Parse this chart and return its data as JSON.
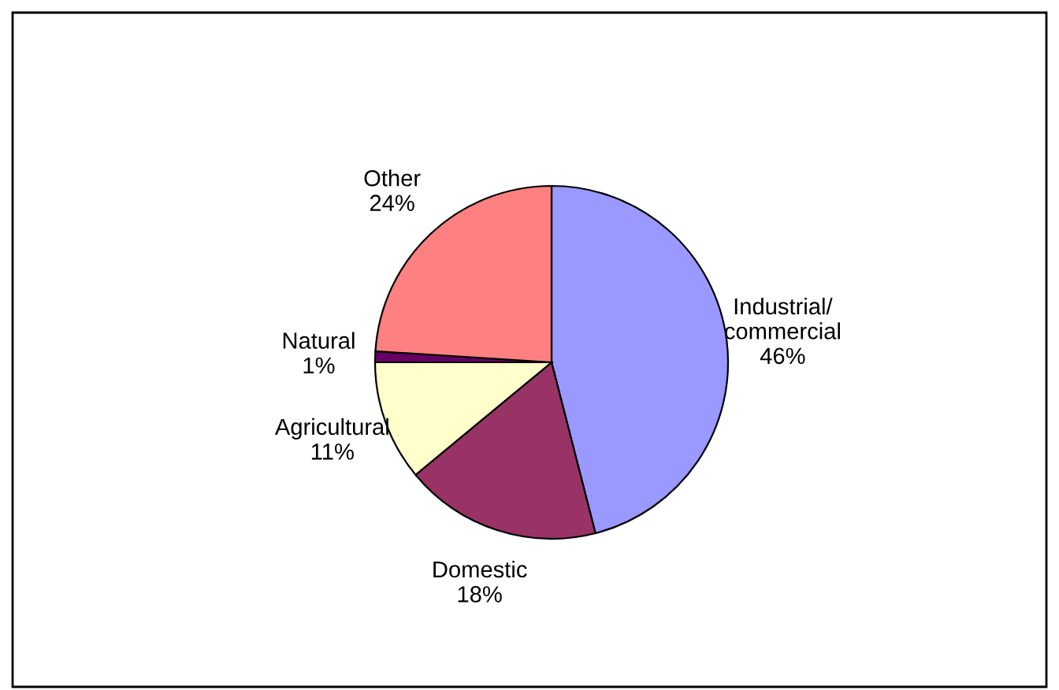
{
  "chart_data": {
    "type": "pie",
    "categories": [
      "Industrial/\ncommercial",
      "Domestic",
      "Agricultural",
      "Natural",
      "Other"
    ],
    "values": [
      46,
      18,
      11,
      1,
      24
    ],
    "colors": [
      "#9999ff",
      "#993366",
      "#ffffcc",
      "#660066",
      "#ff8080"
    ],
    "value_labels": [
      "46%",
      "18%",
      "11%",
      "1%",
      "24%"
    ]
  }
}
